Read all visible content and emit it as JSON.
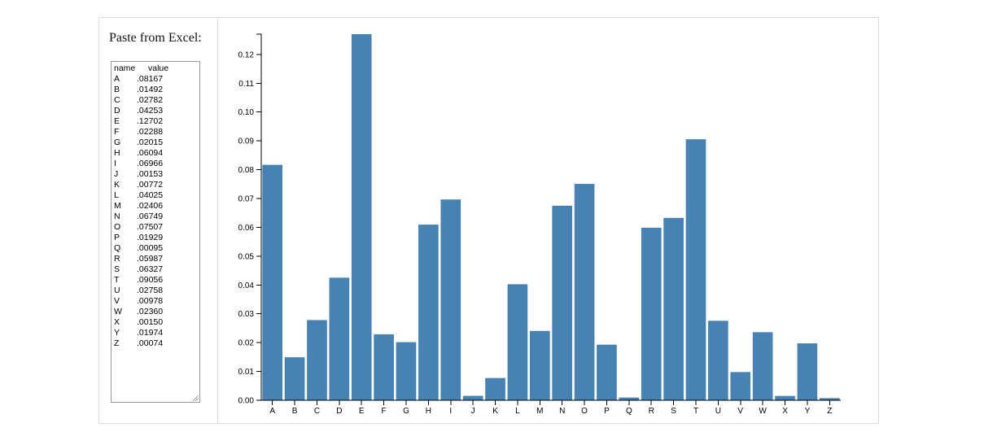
{
  "panel": {
    "title": "Paste from Excel:"
  },
  "paste_area": {
    "header": {
      "name": "name",
      "value": "value"
    },
    "rows": [
      [
        "A",
        ".08167"
      ],
      [
        "B",
        ".01492"
      ],
      [
        "C",
        ".02782"
      ],
      [
        "D",
        ".04253"
      ],
      [
        "E",
        ".12702"
      ],
      [
        "F",
        ".02288"
      ],
      [
        "G",
        ".02015"
      ],
      [
        "H",
        ".06094"
      ],
      [
        "I",
        ".06966"
      ],
      [
        "J",
        ".00153"
      ],
      [
        "K",
        ".00772"
      ],
      [
        "L",
        ".04025"
      ],
      [
        "M",
        ".02406"
      ],
      [
        "N",
        ".06749"
      ],
      [
        "O",
        ".07507"
      ],
      [
        "P",
        ".01929"
      ],
      [
        "Q",
        ".00095"
      ],
      [
        "R",
        ".05987"
      ],
      [
        "S",
        ".06327"
      ],
      [
        "T",
        ".09056"
      ],
      [
        "U",
        ".02758"
      ],
      [
        "V",
        ".00978"
      ],
      [
        "W",
        ".02360"
      ],
      [
        "X",
        ".00150"
      ],
      [
        "Y",
        ".01974"
      ],
      [
        "Z",
        ".00074"
      ]
    ]
  },
  "colors": {
    "bar": "#4682b4",
    "axis": "#000000",
    "border": "#dcdcdc"
  },
  "chart_data": {
    "type": "bar",
    "title": "",
    "xlabel": "",
    "ylabel": "",
    "categories": [
      "A",
      "B",
      "C",
      "D",
      "E",
      "F",
      "G",
      "H",
      "I",
      "J",
      "K",
      "L",
      "M",
      "N",
      "O",
      "P",
      "Q",
      "R",
      "S",
      "T",
      "U",
      "V",
      "W",
      "X",
      "Y",
      "Z"
    ],
    "values": [
      0.08167,
      0.01492,
      0.02782,
      0.04253,
      0.12702,
      0.02288,
      0.02015,
      0.06094,
      0.06966,
      0.00153,
      0.00772,
      0.04025,
      0.02406,
      0.06749,
      0.07507,
      0.01929,
      0.00095,
      0.05987,
      0.06327,
      0.09056,
      0.02758,
      0.00978,
      0.0236,
      0.0015,
      0.01974,
      0.00074
    ],
    "ylim": [
      0,
      0.12702
    ],
    "yticks": [
      "0.00",
      "0.01",
      "0.02",
      "0.03",
      "0.04",
      "0.05",
      "0.06",
      "0.07",
      "0.08",
      "0.09",
      "0.10",
      "0.11",
      "0.12"
    ],
    "grid": false,
    "legend": "none"
  }
}
